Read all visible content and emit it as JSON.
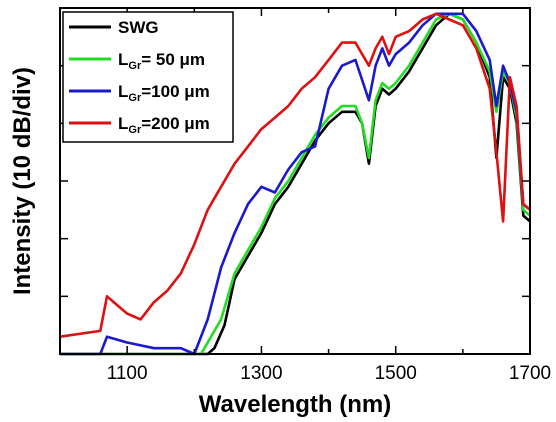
{
  "chart_data": {
    "type": "line",
    "xlabel": "Wavelength (nm)",
    "ylabel": "Intensity (10 dB/div)",
    "xlim": [
      1000,
      1700
    ],
    "ylim": [
      0,
      6
    ],
    "x_ticks": [
      "1100",
      "1300",
      "1500",
      "1700"
    ],
    "y_ticks_labeled": false,
    "grid": false,
    "legend_position": "top-left",
    "series": [
      {
        "name": "SWG",
        "legend": {
          "main": "SWG",
          "sub": "",
          "tail": ""
        },
        "color": "#000000",
        "x": [
          1000,
          1220,
          1230,
          1245,
          1260,
          1280,
          1300,
          1320,
          1340,
          1360,
          1380,
          1400,
          1420,
          1440,
          1450,
          1460,
          1470,
          1480,
          1490,
          1500,
          1520,
          1540,
          1560,
          1580,
          1600,
          1620,
          1640,
          1650,
          1660,
          1670,
          1680,
          1690,
          1700
        ],
        "y": [
          0,
          0,
          0.1,
          0.5,
          1.3,
          1.7,
          2.1,
          2.6,
          2.9,
          3.3,
          3.7,
          4.0,
          4.2,
          4.2,
          4.0,
          3.3,
          4.3,
          4.6,
          4.5,
          4.6,
          4.9,
          5.3,
          5.7,
          5.9,
          5.8,
          5.4,
          4.8,
          3.4,
          4.8,
          4.6,
          4.0,
          2.4,
          2.3
        ]
      },
      {
        "name": "LGr= 50 μm",
        "legend": {
          "main": "L",
          "sub": "Gr",
          "tail": "= 50 μm"
        },
        "color": "#22dd22",
        "x": [
          1000,
          1210,
          1220,
          1240,
          1260,
          1280,
          1300,
          1320,
          1340,
          1360,
          1380,
          1400,
          1420,
          1440,
          1450,
          1460,
          1470,
          1480,
          1490,
          1500,
          1520,
          1540,
          1560,
          1580,
          1600,
          1620,
          1640,
          1650,
          1660,
          1670,
          1680,
          1690,
          1700
        ],
        "y": [
          0,
          0,
          0.2,
          0.6,
          1.4,
          1.8,
          2.2,
          2.7,
          3.0,
          3.4,
          3.8,
          4.1,
          4.3,
          4.3,
          4.0,
          3.4,
          4.4,
          4.7,
          4.6,
          4.7,
          5.0,
          5.4,
          5.8,
          5.9,
          5.8,
          5.4,
          4.9,
          4.2,
          4.9,
          4.7,
          4.1,
          2.5,
          2.4
        ]
      },
      {
        "name": "LGr=100 μm",
        "legend": {
          "main": "L",
          "sub": "Gr",
          "tail": "=100 μm"
        },
        "color": "#1a1acc",
        "x": [
          1000,
          1060,
          1070,
          1100,
          1140,
          1180,
          1200,
          1220,
          1240,
          1260,
          1280,
          1300,
          1320,
          1340,
          1360,
          1380,
          1400,
          1420,
          1440,
          1460,
          1470,
          1480,
          1490,
          1500,
          1520,
          1540,
          1560,
          1580,
          1600,
          1620,
          1640,
          1650,
          1660,
          1670,
          1680,
          1690,
          1700
        ],
        "y": [
          0,
          0,
          0.3,
          0.2,
          0.1,
          0.1,
          0,
          0.6,
          1.5,
          2.1,
          2.6,
          2.9,
          2.8,
          3.2,
          3.5,
          3.6,
          4.6,
          5.0,
          5.1,
          4.4,
          5.0,
          5.3,
          5.0,
          5.2,
          5.4,
          5.7,
          5.9,
          5.9,
          5.9,
          5.6,
          5.1,
          4.3,
          5.0,
          4.7,
          4.2,
          2.6,
          2.5
        ]
      },
      {
        "name": "LGr=200 μm",
        "legend": {
          "main": "L",
          "sub": "Gr",
          "tail": "=200 μm"
        },
        "color": "#dd1111",
        "x": [
          1000,
          1060,
          1070,
          1080,
          1100,
          1120,
          1140,
          1160,
          1180,
          1200,
          1220,
          1240,
          1260,
          1280,
          1300,
          1320,
          1340,
          1360,
          1380,
          1400,
          1420,
          1440,
          1460,
          1470,
          1480,
          1490,
          1500,
          1520,
          1540,
          1560,
          1580,
          1600,
          1620,
          1640,
          1650,
          1660,
          1670,
          1680,
          1690,
          1700
        ],
        "y": [
          0.3,
          0.4,
          1.0,
          0.9,
          0.7,
          0.6,
          0.9,
          1.1,
          1.4,
          1.9,
          2.5,
          2.9,
          3.3,
          3.6,
          3.9,
          4.1,
          4.3,
          4.6,
          4.8,
          5.1,
          5.4,
          5.4,
          5.0,
          5.3,
          5.5,
          5.2,
          5.5,
          5.6,
          5.8,
          5.9,
          5.8,
          5.7,
          5.3,
          4.6,
          3.5,
          2.3,
          4.8,
          4.3,
          2.6,
          2.5
        ]
      }
    ]
  }
}
